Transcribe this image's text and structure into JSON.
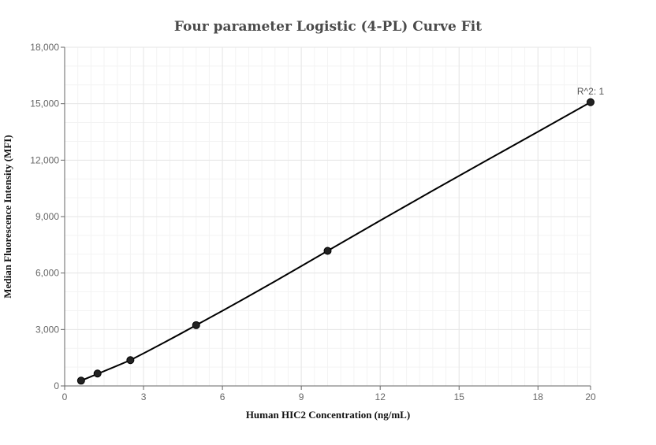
{
  "chart_data": {
    "type": "scatter",
    "title": "Four parameter Logistic (4-PL) Curve Fit",
    "xlabel": "Human HIC2 Concentration (ng/mL)",
    "ylabel": "Median Fluorescence Intensity (MFI)",
    "xlim": [
      0,
      20
    ],
    "ylim": [
      0,
      18000
    ],
    "x_ticks": [
      0,
      3,
      6,
      9,
      12,
      15,
      18,
      20
    ],
    "y_ticks": [
      0,
      3000,
      6000,
      9000,
      12000,
      15000,
      18000
    ],
    "x_tick_labels": [
      "0",
      "3",
      "6",
      "9",
      "12",
      "15",
      "18",
      "20"
    ],
    "y_tick_labels": [
      "0",
      "3,000",
      "6,000",
      "9,000",
      "12,000",
      "15,000",
      "18,000"
    ],
    "grid": true,
    "series": [
      {
        "points": [
          {
            "x": 0.625,
            "y": 280
          },
          {
            "x": 1.25,
            "y": 660
          },
          {
            "x": 2.5,
            "y": 1370
          },
          {
            "x": 5,
            "y": 3230
          },
          {
            "x": 10,
            "y": 7180
          },
          {
            "x": 20,
            "y": 15080
          }
        ],
        "fit_curve": [
          [
            0.625,
            280
          ],
          [
            1.25,
            640
          ],
          [
            1.875,
            1000
          ],
          [
            2.5,
            1370
          ],
          [
            3.125,
            1820
          ],
          [
            3.75,
            2280
          ],
          [
            4.375,
            2750
          ],
          [
            5,
            3230
          ],
          [
            6,
            3990
          ],
          [
            7,
            4770
          ],
          [
            8,
            5560
          ],
          [
            9,
            6370
          ],
          [
            10,
            7180
          ],
          [
            12,
            8790
          ],
          [
            14,
            10380
          ],
          [
            16,
            11950
          ],
          [
            18,
            13510
          ],
          [
            20,
            15080
          ]
        ]
      }
    ],
    "annotations": [
      {
        "text": "R^2: 1",
        "anchor_x": 20,
        "anchor_y": 15080
      }
    ],
    "colors": {
      "line": "#000000",
      "marker": "#222222",
      "grid": "#e6e6e6",
      "axis": "#666666"
    }
  }
}
